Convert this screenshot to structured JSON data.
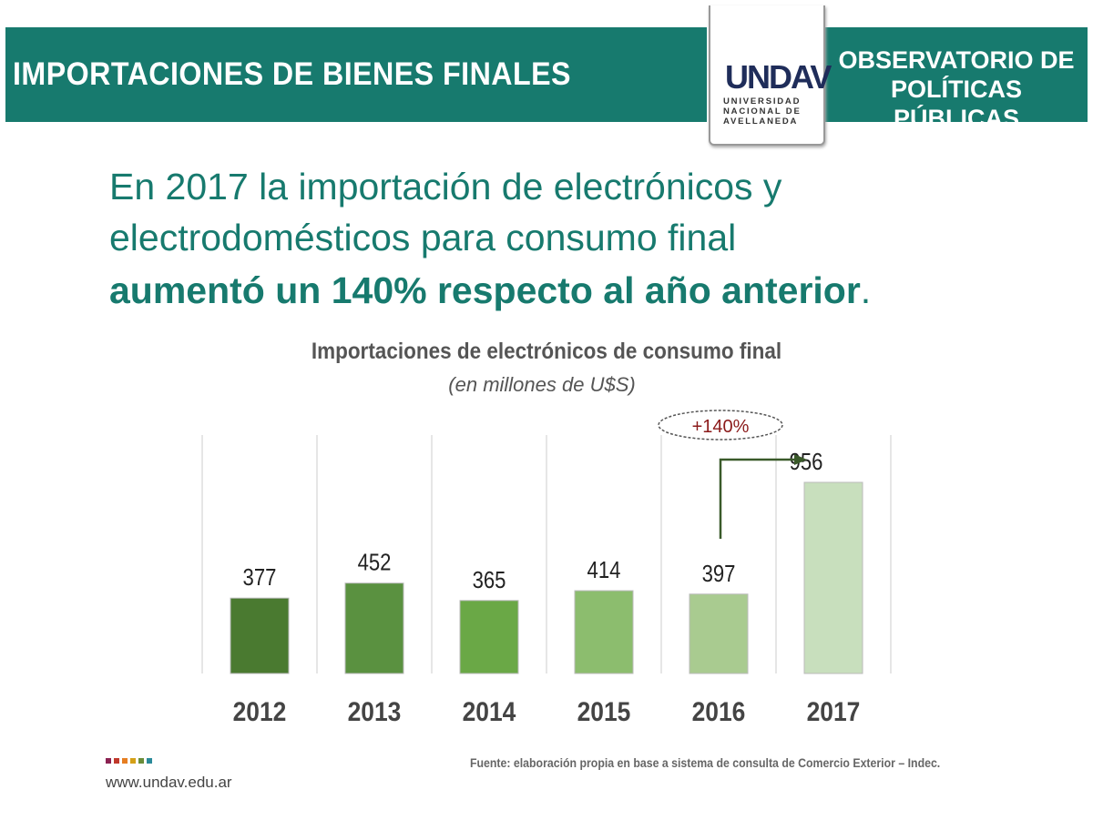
{
  "header": {
    "title": "IMPORTACIONES DE BIENES FINALES",
    "right_line1": "OBSERVATORIO DE",
    "right_line2": "POLÍTICAS PÚBLICAS",
    "logo_mark": "UNDAV",
    "logo_text": [
      "UNIVERSIDAD",
      "NACIONAL DE",
      "AVELLANEDA"
    ],
    "color": "#177a6e"
  },
  "headline": {
    "line1": "En 2017 la importación de electrónicos y",
    "line2": "electrodomésticos para consumo final",
    "line3_bold": "aumentó un 140% respecto al año anterior",
    "line3_end": "."
  },
  "chart_data": {
    "type": "bar",
    "title": "Importaciones de electrónicos de consumo final",
    "subtitle": "(en millones de U$S)",
    "categories": [
      "2012",
      "2013",
      "2014",
      "2015",
      "2016",
      "2017"
    ],
    "values": [
      377,
      452,
      365,
      414,
      397,
      956
    ],
    "labels": [
      "377",
      "452",
      "365",
      "414",
      "397",
      "956"
    ],
    "colors": [
      "#4a7a30",
      "#5a9140",
      "#6aa846",
      "#8cbd6e",
      "#a9cb90",
      "#c8dfbd"
    ],
    "annotation": {
      "text": "+140%",
      "from": "2016",
      "to": "2017",
      "color": "#8b1a1a"
    },
    "ylim": [
      0,
      1000
    ],
    "grid": "vertical separators"
  },
  "footer": {
    "url": "www.undav.edu.ar",
    "source": "Fuente: elaboración propia en base a sistema de consulta de Comercio Exterior – Indec.",
    "dot_colors": [
      "#8b2252",
      "#c0392b",
      "#e67e22",
      "#d4a017",
      "#6a8d3a",
      "#2a8a9a"
    ]
  }
}
